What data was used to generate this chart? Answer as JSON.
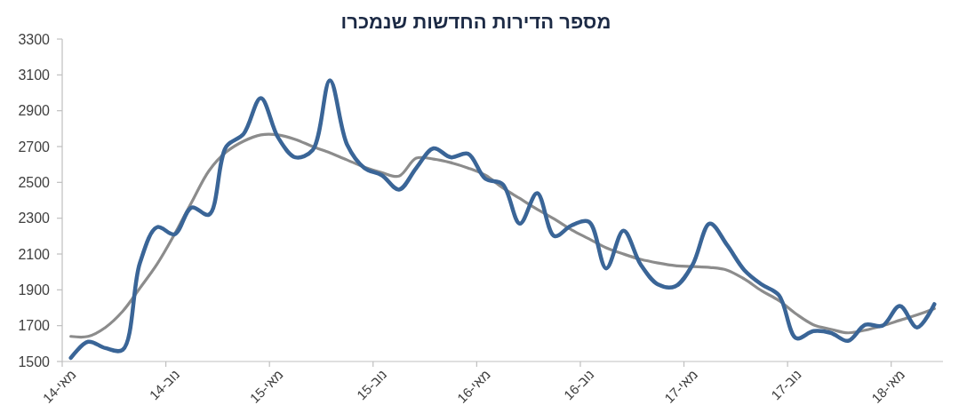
{
  "chart_data": {
    "type": "line",
    "title": "מספר הדירות החדשות שנמכרו",
    "categories": [
      "מאי-14",
      null,
      null,
      null,
      null,
      null,
      "נוב-14",
      null,
      null,
      null,
      null,
      null,
      "מאי-15",
      null,
      null,
      null,
      null,
      null,
      "נוב-15",
      null,
      null,
      null,
      null,
      null,
      "מאי-16",
      null,
      null,
      null,
      null,
      null,
      "נוב-16",
      null,
      null,
      null,
      null,
      null,
      "מאי-17",
      null,
      null,
      null,
      null,
      null,
      "נוב-17",
      null,
      null,
      null,
      null,
      null,
      "מאי-18",
      null,
      null
    ],
    "ylim": [
      1500,
      3300
    ],
    "yticks": [
      1500,
      1700,
      1900,
      2100,
      2300,
      2500,
      2700,
      2900,
      3100,
      3300
    ],
    "series": [
      {
        "color": "#3a6597",
        "values": [
          1520,
          1610,
          1575,
          1565,
          2050,
          2250,
          2210,
          2360,
          2320,
          2700,
          2770,
          2970,
          2750,
          2640,
          2680,
          3070,
          2710,
          2580,
          2540,
          2460,
          2580,
          2690,
          2640,
          2660,
          2520,
          2490,
          2270,
          2440,
          2200,
          2260,
          2280,
          2020,
          2230,
          2040,
          1930,
          1920,
          2040,
          2270,
          2150,
          2010,
          1930,
          1870,
          1630,
          1670,
          1660,
          1615,
          1705,
          1700,
          1810,
          1690,
          1820
        ]
      },
      {
        "color": "#8c8c8c",
        "values": [
          1640,
          1640,
          1690,
          1780,
          1910,
          2045,
          2210,
          2390,
          2565,
          2670,
          2730,
          2765,
          2765,
          2740,
          2700,
          2665,
          2625,
          2585,
          2555,
          2535,
          2635,
          2630,
          2610,
          2580,
          2540,
          2470,
          2410,
          2350,
          2295,
          2235,
          2185,
          2135,
          2100,
          2070,
          2050,
          2035,
          2030,
          2025,
          2010,
          1960,
          1895,
          1840,
          1765,
          1705,
          1680,
          1660,
          1675,
          1700,
          1730,
          1760,
          1795
        ]
      }
    ]
  }
}
